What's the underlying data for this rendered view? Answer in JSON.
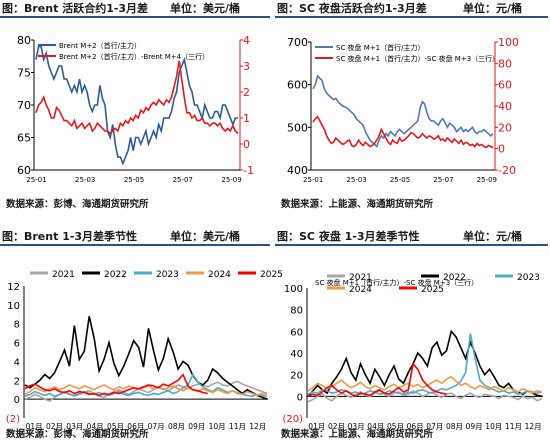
{
  "panels": [
    {
      "title": "图：Brent 活跃合约1-3月差",
      "unit": "单位：美元/桶",
      "source": "数据来源：彭博、海通期货研究所"
    },
    {
      "title": "图：SC 夜盘活跃合约1-3月差",
      "unit": "单位：元/桶",
      "source": "数据来源：上能源、海通期货研究所"
    },
    {
      "title": "图：Brent 1-3月差季节性",
      "unit": "单位：美元/桶",
      "source": "数据来源：彭博、海通期货研究所"
    },
    {
      "title": "图：SC 夜盘 1-3月差季节性",
      "unit": "单位：元/桶",
      "source": "数据来源：上能源、海通期货研究所"
    }
  ],
  "chart_data": [
    {
      "type": "line",
      "dual_axis": true,
      "x_ticks": [
        "25-01",
        "25-03",
        "25-05",
        "25-07",
        "25-09"
      ],
      "ylim_left": [
        60,
        80
      ],
      "yticks_left": [
        60,
        65,
        70,
        75,
        80
      ],
      "ylim_right": [
        -1,
        4
      ],
      "yticks_right": [
        -1,
        0,
        1,
        2,
        3,
        4
      ],
      "right_axis_color": "#e31a1c",
      "series": [
        {
          "name": "Brent M+2（首行/主力）",
          "axis": "left",
          "color": "#2e5a95",
          "values": [
            77,
            79,
            79,
            77,
            78,
            76,
            75,
            74,
            75,
            76,
            76,
            74,
            74,
            73,
            72,
            73,
            72,
            74,
            72,
            73,
            72,
            70,
            69,
            70,
            70,
            73,
            71,
            70,
            66,
            65,
            67,
            64,
            62,
            62,
            61,
            62,
            63,
            65,
            63,
            65,
            65,
            64,
            65,
            66,
            64,
            65,
            66,
            65,
            67,
            66,
            68,
            68,
            68,
            69,
            71,
            72,
            75,
            76,
            77,
            75,
            73,
            72,
            70,
            70,
            69,
            68,
            70,
            69,
            68,
            68,
            69,
            69,
            68,
            70,
            70,
            69,
            68,
            67,
            68,
            68
          ]
        },
        {
          "name": "Brent M+2（首行/主力）-Brent M+4（三行）",
          "axis": "right",
          "color": "#e31a1c",
          "values": [
            1.2,
            1.5,
            1.6,
            1.8,
            1.5,
            1.3,
            1.0,
            1.0,
            1.4,
            1.3,
            1.1,
            0.9,
            0.9,
            0.8,
            0.7,
            0.9,
            0.6,
            0.7,
            0.8,
            0.6,
            0.7,
            0.8,
            0.5,
            0.6,
            0.8,
            0.7,
            0.6,
            0.5,
            0.5,
            0.4,
            0.5,
            0.6,
            0.5,
            0.8,
            0.7,
            0.9,
            0.8,
            1.0,
            0.9,
            1.1,
            1.0,
            1.3,
            1.2,
            1.4,
            1.3,
            1.5,
            1.6,
            1.5,
            1.7,
            1.6,
            1.5,
            1.7,
            1.6,
            1.8,
            2.2,
            2.6,
            3.2,
            2.5,
            1.8,
            1.2,
            1.2,
            1.0,
            1.1,
            0.9,
            0.9,
            1.0,
            0.8,
            0.8,
            0.7,
            0.8,
            0.8,
            0.7,
            0.8,
            0.6,
            0.5,
            0.6,
            0.5,
            0.7,
            0.5,
            0.4
          ]
        }
      ]
    },
    {
      "type": "line",
      "dual_axis": true,
      "x_ticks": [
        "25-01",
        "25-03",
        "25-05",
        "25-07",
        "25-09"
      ],
      "ylim_left": [
        400,
        700
      ],
      "yticks_left": [
        400,
        500,
        600,
        700
      ],
      "ylim_right": [
        -20,
        100
      ],
      "yticks_right": [
        -20,
        0,
        20,
        40,
        60,
        80,
        100
      ],
      "right_axis_color": "#e31a1c",
      "series": [
        {
          "name": "SC 夜盘 M+1（首行/主力）",
          "axis": "left",
          "color": "#4e79b8",
          "values": [
            590,
            600,
            620,
            615,
            610,
            590,
            580,
            575,
            570,
            565,
            568,
            560,
            555,
            550,
            548,
            545,
            540,
            535,
            530,
            520,
            515,
            510,
            505,
            490,
            480,
            470,
            465,
            460,
            455,
            470,
            480,
            475,
            485,
            480,
            490,
            485,
            480,
            490,
            495,
            490,
            485,
            490,
            495,
            500,
            505,
            510,
            515,
            545,
            560,
            555,
            535,
            520,
            515,
            515,
            510,
            505,
            515,
            520,
            510,
            500,
            510,
            505,
            500,
            490,
            495,
            500,
            490,
            495,
            490,
            495,
            500,
            490,
            485,
            490,
            490,
            495,
            490,
            485,
            480,
            485
          ]
        },
        {
          "name": "SC 夜盘 M+1（首行/主力）-SC 夜盘 M+3（三行）",
          "axis": "right",
          "color": "#e31a1c",
          "values": [
            25,
            28,
            30,
            26,
            22,
            18,
            12,
            8,
            5,
            6,
            10,
            8,
            6,
            4,
            5,
            7,
            8,
            3,
            2,
            4,
            8,
            5,
            3,
            6,
            4,
            2,
            3,
            5,
            8,
            12,
            18,
            14,
            10,
            6,
            4,
            8,
            6,
            5,
            10,
            7,
            8,
            10,
            12,
            15,
            14,
            12,
            10,
            11,
            14,
            12,
            10,
            12,
            11,
            9,
            10,
            12,
            8,
            9,
            7,
            10,
            8,
            6,
            9,
            7,
            5,
            8,
            4,
            6,
            5,
            3,
            4,
            2,
            5,
            3,
            4,
            2,
            1,
            3,
            2,
            1
          ]
        }
      ]
    },
    {
      "type": "line",
      "ylim": [
        -2,
        12
      ],
      "yticks": [
        "(2)",
        "0",
        "2",
        "4",
        "6",
        "8",
        "10",
        "12"
      ],
      "x_ticks": [
        "01月",
        "02月",
        "03月",
        "04月",
        "05月",
        "06月",
        "07月",
        "08月",
        "09月",
        "10月",
        "11月",
        "12月"
      ],
      "series": [
        {
          "name": "2021",
          "color": "#a6a6a6",
          "values": [
            0.0,
            0.2,
            0.5,
            0.3,
            0.0,
            -0.2,
            0.2,
            0.5,
            0.8,
            0.6,
            0.3,
            0.5,
            0.7,
            0.9,
            0.6,
            0.3,
            0.2,
            0.5,
            0.8,
            1.0,
            0.7,
            0.5,
            0.8,
            1.1,
            0.9,
            0.7,
            1.0,
            1.3,
            1.1,
            0.9,
            1.2,
            1.5,
            1.3,
            1.1,
            1.4,
            1.6,
            1.5,
            1.3,
            1.6,
            1.8,
            1.5,
            1.4,
            1.7,
            1.9,
            1.6,
            1.4,
            1.2,
            1.0,
            0.8,
            0.6
          ]
        },
        {
          "name": "2022",
          "color": "#000000",
          "values": [
            1.5,
            1.2,
            1.6,
            2.0,
            2.6,
            2.2,
            2.8,
            4.0,
            5.2,
            3.5,
            7.8,
            4.2,
            5.1,
            8.8,
            6.5,
            3.0,
            4.2,
            6.0,
            3.8,
            2.5,
            3.5,
            4.8,
            6.2,
            5.5,
            3.4,
            7.5,
            5.2,
            3.1,
            4.3,
            6.4,
            5.0,
            3.2,
            4.0,
            3.6,
            2.5,
            1.8,
            1.5,
            2.0,
            3.2,
            2.8,
            2.2,
            1.8,
            1.4,
            1.0,
            0.6,
            1.0,
            0.7,
            0.4,
            0.2,
            0.0
          ]
        },
        {
          "name": "2023",
          "color": "#4bacc6",
          "values": [
            0.3,
            0.5,
            0.8,
            0.6,
            0.4,
            0.6,
            0.3,
            0.5,
            0.7,
            0.5,
            0.4,
            0.6,
            0.8,
            0.6,
            0.5,
            0.7,
            0.5,
            0.4,
            0.6,
            0.8,
            0.5,
            0.4,
            0.6,
            0.7,
            0.5,
            0.4,
            0.6,
            0.5,
            0.7,
            0.9,
            0.6,
            0.8,
            1.2,
            1.5,
            2.6,
            1.8,
            1.3,
            1.0,
            0.8,
            1.2,
            1.0,
            0.7,
            0.9,
            0.6,
            0.5,
            0.4,
            0.3,
            0.5,
            0.4,
            0.3
          ]
        },
        {
          "name": "2024",
          "color": "#f79646",
          "values": [
            0.5,
            0.8,
            1.2,
            1.0,
            0.8,
            1.1,
            1.3,
            1.0,
            1.2,
            1.5,
            1.3,
            1.1,
            1.4,
            1.2,
            1.0,
            1.3,
            1.5,
            1.2,
            1.0,
            1.3,
            1.1,
            1.4,
            1.2,
            1.0,
            1.2,
            1.4,
            1.1,
            1.3,
            1.0,
            1.2,
            1.4,
            1.1,
            0.9,
            1.2,
            1.0,
            0.8,
            1.1,
            0.9,
            0.7,
            1.0,
            0.8,
            0.6,
            0.9,
            0.7,
            0.5,
            0.8,
            0.6,
            0.4,
            0.6,
            0.5
          ]
        },
        {
          "name": "2025",
          "color": "#ff0000",
          "values": [
            1.1,
            1.4,
            1.6,
            1.3,
            1.0,
            0.9,
            1.1,
            0.8,
            0.7,
            0.9,
            0.6,
            0.8,
            0.7,
            0.5,
            0.6,
            0.4,
            0.6,
            0.5,
            0.7,
            0.6,
            0.8,
            1.0,
            1.2,
            1.1,
            1.3,
            1.5,
            1.4,
            1.2,
            1.6,
            1.4,
            1.7,
            2.0,
            2.6,
            1.4,
            1.0,
            0.9,
            0.7,
            0.6
          ]
        }
      ]
    },
    {
      "type": "line",
      "ylim": [
        -20,
        100
      ],
      "yticks": [
        "(20)",
        "0",
        "20",
        "40",
        "60",
        "80",
        "100"
      ],
      "header": "SC 夜盘 M+1（首行/主力）-SC 夜盘 M+3（三行）",
      "x_ticks": [
        "01月",
        "02月",
        "03月",
        "04月",
        "05月",
        "06月",
        "07月",
        "08月",
        "09月",
        "10月",
        "11月",
        "12月"
      ],
      "series": [
        {
          "name": "2021",
          "color": "#a6a6a6",
          "values": [
            -5,
            -3,
            0,
            2,
            -2,
            -4,
            0,
            3,
            1,
            -1,
            2,
            4,
            1,
            0,
            3,
            5,
            2,
            0,
            3,
            4,
            1,
            2,
            5,
            3,
            0,
            2,
            4,
            1,
            -1,
            2,
            3,
            0,
            -2,
            1,
            3,
            0,
            -1,
            2,
            1,
            0,
            -2,
            1,
            0,
            -1,
            -3,
            0,
            -2,
            -1,
            -4,
            -2
          ]
        },
        {
          "name": "2022",
          "color": "#000000",
          "values": [
            0,
            5,
            10,
            6,
            3,
            12,
            18,
            25,
            35,
            22,
            15,
            30,
            20,
            12,
            25,
            18,
            10,
            20,
            28,
            16,
            12,
            22,
            30,
            40,
            35,
            28,
            45,
            50,
            38,
            42,
            60,
            55,
            45,
            35,
            50,
            40,
            28,
            20,
            25,
            18,
            10,
            8,
            12,
            6,
            4,
            2,
            5,
            3,
            1,
            0
          ]
        },
        {
          "name": "2023",
          "color": "#4bacc6",
          "values": [
            2,
            4,
            3,
            6,
            5,
            3,
            4,
            6,
            5,
            3,
            4,
            2,
            3,
            5,
            4,
            2,
            3,
            5,
            4,
            3,
            2,
            4,
            3,
            5,
            6,
            4,
            3,
            5,
            7,
            6,
            8,
            10,
            14,
            22,
            58,
            35,
            15,
            10,
            8,
            6,
            4,
            5,
            3,
            4,
            2,
            3,
            5,
            4,
            3,
            4
          ]
        },
        {
          "name": "2024",
          "color": "#f79646",
          "values": [
            5,
            8,
            12,
            10,
            7,
            9,
            12,
            15,
            11,
            8,
            10,
            13,
            9,
            7,
            10,
            8,
            6,
            9,
            11,
            8,
            10,
            12,
            9,
            11,
            8,
            10,
            13,
            15,
            12,
            16,
            18,
            14,
            10,
            12,
            9,
            7,
            10,
            8,
            6,
            9,
            7,
            5,
            8,
            6,
            4,
            7,
            5,
            3,
            5,
            4
          ]
        },
        {
          "name": "2025",
          "color": "#ff0000",
          "values": [
            0,
            2,
            1,
            4,
            8,
            10,
            6,
            3,
            5,
            2,
            0,
            3,
            2,
            1,
            4,
            6,
            3,
            2,
            5,
            8,
            4,
            6,
            30,
            25,
            15,
            10,
            6,
            4,
            3,
            2
          ]
        }
      ]
    }
  ]
}
